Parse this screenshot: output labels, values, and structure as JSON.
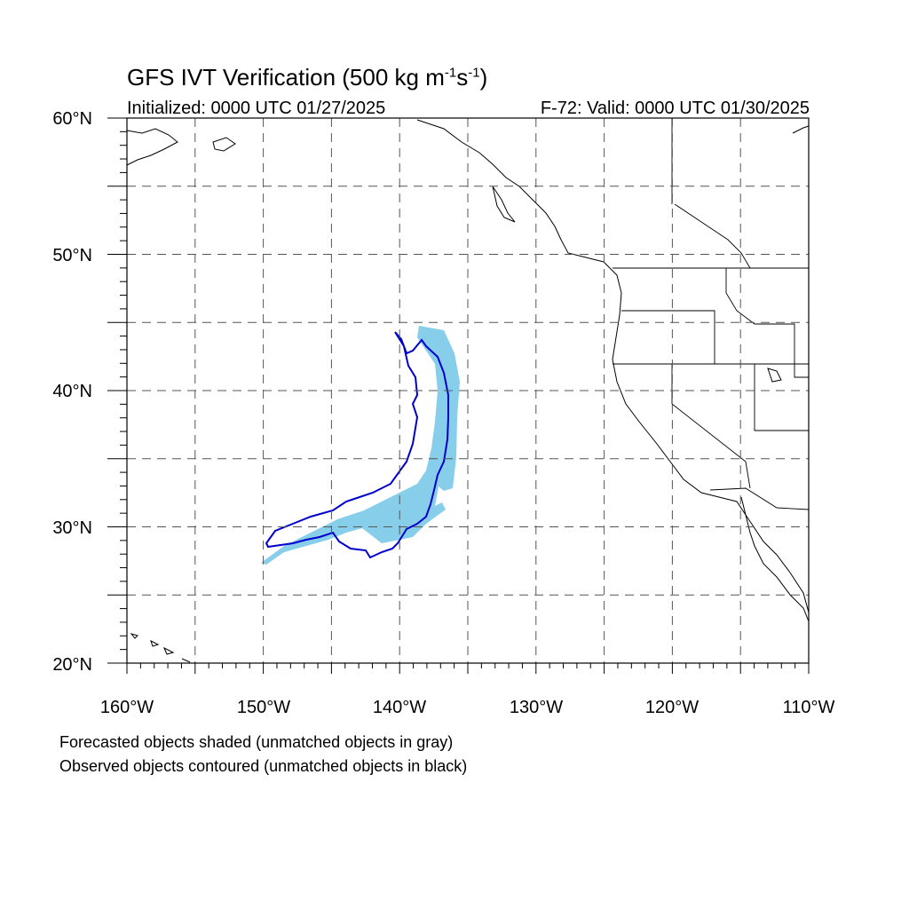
{
  "header": {
    "title_main": "GFS IVT Verification (500 kg m",
    "title_exp1": "-1",
    "title_mid": "s",
    "title_exp2": "-1",
    "title_end": ")",
    "initialized": "Initialized: 0000 UTC 01/27/2025",
    "valid": "F-72: Valid: 0000 UTC 01/30/2025"
  },
  "map": {
    "lat_labels": [
      "60°N",
      "50°N",
      "40°N",
      "30°N",
      "20°N"
    ],
    "lon_labels": [
      "160°W",
      "150°W",
      "140°W",
      "130°W",
      "120°W",
      "110°W"
    ],
    "lon_range": [
      -160,
      -110
    ],
    "lat_range": [
      20,
      60
    ],
    "grid_spacing_deg": 5,
    "grid_style": "dashed",
    "colors": {
      "forecast_matched": "#87ceeb",
      "observed_matched": "#0000cc",
      "coastline": "#000000",
      "grid": "#555555"
    }
  },
  "legend": {
    "line1": "Forecasted objects shaded (unmatched objects in gray)",
    "line2": "Observed objects contoured (unmatched objects in black)"
  }
}
